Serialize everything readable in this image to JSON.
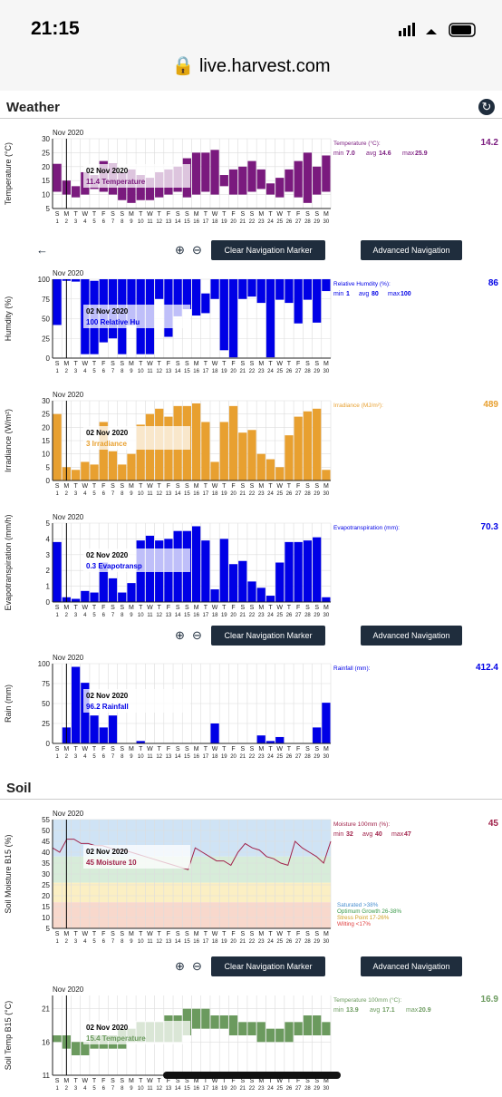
{
  "status_bar": {
    "time": "21:15",
    "url": "live.harvest.com"
  },
  "sections": {
    "weather": "Weather",
    "soil": "Soil"
  },
  "controls": {
    "clear": "Clear Navigation Marker",
    "advanced": "Advanced Navigation"
  },
  "days": {
    "dow": [
      "S",
      "M",
      "T",
      "W",
      "T",
      "F",
      "S",
      "S",
      "M",
      "T",
      "W",
      "T",
      "F",
      "S",
      "S",
      "M",
      "T",
      "W",
      "T",
      "F",
      "S",
      "S",
      "M",
      "T",
      "W",
      "T",
      "F",
      "S",
      "S",
      "M"
    ],
    "nums": [
      "1",
      "2",
      "3",
      "4",
      "5",
      "6",
      "7",
      "8",
      "9",
      "10",
      "11",
      "12",
      "13",
      "14",
      "15",
      "16",
      "17",
      "18",
      "19",
      "20",
      "21",
      "22",
      "23",
      "24",
      "25",
      "26",
      "27",
      "28",
      "29",
      "30"
    ]
  },
  "tooltip_date": "02 Nov 2020",
  "charts": [
    {
      "id": "temperature",
      "month": "Nov 2020",
      "ylabel": "Temperature (°C)",
      "color": "#7a1a7e",
      "yticks": [
        "30",
        "25",
        "20",
        "15",
        "10",
        "5"
      ],
      "ymin": 5,
      "ymax": 30,
      "type": "range",
      "low": [
        11,
        10,
        9,
        10,
        12,
        11,
        10,
        8,
        7,
        8,
        8,
        9,
        10,
        11,
        9,
        10,
        11,
        10,
        13,
        10,
        10,
        11,
        12,
        10,
        9,
        11,
        9,
        7,
        10,
        11
      ],
      "high": [
        21,
        15,
        13,
        18,
        17,
        22,
        21,
        18,
        19,
        17,
        16,
        18,
        19,
        20,
        23,
        25,
        25,
        26,
        17,
        19,
        20,
        22,
        19,
        14,
        16,
        19,
        22,
        25,
        20,
        24
      ],
      "tooltip": "11.4 Temperature",
      "legend_title": "Temperature (°C):",
      "stats": [
        "min",
        "7.0",
        "avg",
        "14.6",
        "max",
        "25.9"
      ],
      "big": "14.2"
    },
    {
      "id": "humidity",
      "month": "Nov 2020",
      "ylabel": "Humdity (%)",
      "color": "#0000e6",
      "yticks": [
        "100",
        "75",
        "50",
        "25",
        "0"
      ],
      "ymin": 0,
      "ymax": 100,
      "type": "range",
      "low": [
        42,
        98,
        97,
        5,
        5,
        20,
        25,
        5,
        42,
        5,
        5,
        75,
        27,
        53,
        62,
        54,
        57,
        75,
        10,
        1,
        75,
        78,
        70,
        1,
        74,
        70,
        44,
        74,
        45,
        85
      ],
      "high": [
        100,
        100,
        100,
        100,
        98,
        100,
        100,
        100,
        100,
        100,
        100,
        100,
        100,
        100,
        100,
        100,
        82,
        100,
        100,
        100,
        100,
        100,
        100,
        100,
        100,
        100,
        100,
        100,
        100,
        100
      ],
      "tooltip": "100 Relative Hu",
      "legend_title": "Relative Humdity (%):",
      "stats": [
        "min",
        "1",
        "avg",
        "80",
        "max",
        "100"
      ],
      "big": "86"
    },
    {
      "id": "irradiance",
      "month": "Nov 2020",
      "ylabel": "Irradiance (W/m²)",
      "color": "#e8a030",
      "yticks": [
        "30",
        "25",
        "20",
        "15",
        "10",
        "5",
        "0"
      ],
      "ymin": 0,
      "ymax": 30,
      "type": "bar",
      "values": [
        25,
        5,
        4,
        7,
        6,
        22,
        11,
        6,
        10,
        21,
        25,
        27,
        24,
        28,
        28,
        29,
        22,
        7,
        22,
        28,
        18,
        19,
        10,
        8,
        5,
        17,
        24,
        26,
        27,
        4
      ],
      "tooltip": "3 Irradiance",
      "legend_title": "Irradiance (MJ/m²):",
      "stats": [],
      "big": "489"
    },
    {
      "id": "evapotranspiration",
      "month": "Nov 2020",
      "ylabel": "Evapotranspiration (mm/h)",
      "color": "#0000e6",
      "yticks": [
        "5",
        "4",
        "3",
        "2",
        "1",
        "0"
      ],
      "ymin": 0,
      "ymax": 5,
      "type": "bar",
      "values": [
        3.8,
        0.3,
        0.2,
        0.7,
        0.6,
        2.5,
        1.5,
        0.6,
        1.2,
        3.9,
        4.2,
        3.9,
        4.0,
        4.5,
        4.5,
        4.8,
        3.9,
        0.8,
        4.0,
        2.4,
        2.6,
        1.3,
        0.9,
        0.4,
        2.5,
        3.8,
        3.8,
        3.9,
        4.1,
        0.3
      ],
      "tooltip": "0.3 Evapotransp",
      "legend_title": "Evapotranspiration (mm):",
      "stats": [],
      "big": "70.3"
    },
    {
      "id": "rain",
      "month": "Nov 2020",
      "ylabel": "Rain (mm)",
      "color": "#0000e6",
      "yticks": [
        "100",
        "75",
        "50",
        "25",
        "0"
      ],
      "ymin": 0,
      "ymax": 100,
      "type": "bar",
      "values": [
        0,
        20,
        96,
        76,
        35,
        20,
        35,
        0,
        0,
        3,
        0,
        0,
        0,
        0,
        0,
        0,
        0,
        25,
        0,
        0,
        0,
        0,
        10,
        3,
        8,
        0,
        0,
        0,
        20,
        51
      ],
      "tooltip": "96.2 Rainfall",
      "legend_title": "Rainfall (mm):",
      "stats": [],
      "big": "412.4"
    },
    {
      "id": "moisture",
      "month": "Nov 2020",
      "ylabel": "Soil Moisture B15 (%)",
      "color": "#a0224a",
      "yticks": [
        "55",
        "50",
        "45",
        "40",
        "35",
        "30",
        "25",
        "20",
        "15",
        "10",
        "5"
      ],
      "ymin": 5,
      "ymax": 55,
      "type": "line",
      "values": [
        42,
        40,
        46,
        46,
        44,
        44,
        43,
        43,
        42,
        41,
        41,
        40,
        39,
        38,
        37,
        36,
        35,
        34,
        33,
        32,
        42,
        40,
        38,
        36,
        36,
        34,
        40,
        44,
        42,
        41,
        38,
        37,
        35,
        34,
        45,
        42,
        40,
        38,
        35,
        45
      ],
      "tooltip": "45 Moisture 10",
      "legend_title": "Moisture 100mm (%):",
      "stats": [
        "min",
        "32",
        "avg",
        "40",
        "max",
        "47"
      ],
      "big": "45",
      "bands": [
        {
          "from": 38,
          "to": 55,
          "color": "#cfe3f5",
          "label": "Saturated >38%",
          "label_color": "#4a8fd0"
        },
        {
          "from": 26,
          "to": 38,
          "color": "#d7ecd9",
          "label": "Optimum Growth 26-38%",
          "label_color": "#3a9a4a"
        },
        {
          "from": 17,
          "to": 26,
          "color": "#fbefc3",
          "label": "Stress Point 17-26%",
          "label_color": "#d0a020"
        },
        {
          "from": 5,
          "to": 17,
          "color": "#f8d8cc",
          "label": "Wilting <17%",
          "label_color": "#e04040"
        }
      ]
    },
    {
      "id": "soiltemp",
      "month": "Nov 2020",
      "ylabel": "Soil Temp B15 (°C)",
      "color": "#6b9a5e",
      "yticks": [
        "21",
        "16",
        "11"
      ],
      "ymin": 11,
      "ymax": 23,
      "type": "range",
      "low": [
        16,
        15,
        14,
        14,
        15,
        15,
        15,
        15,
        16,
        16,
        16,
        16,
        16,
        16,
        17,
        18,
        18,
        18,
        18,
        17,
        17,
        17,
        16,
        16,
        16,
        16,
        17,
        17,
        17,
        17
      ],
      "high": [
        17,
        17,
        16,
        16,
        17,
        17,
        17,
        18,
        18,
        19,
        19,
        19,
        20,
        20,
        21,
        21,
        21,
        20,
        20,
        20,
        19,
        19,
        19,
        18,
        18,
        19,
        19,
        20,
        20,
        19
      ],
      "tooltip": "15.4 Temperature",
      "legend_title": "Temperature 100mm (°C):",
      "stats": [
        "min",
        "13.9",
        "avg",
        "17.1",
        "max",
        "20.9"
      ],
      "big": "16.9"
    }
  ]
}
